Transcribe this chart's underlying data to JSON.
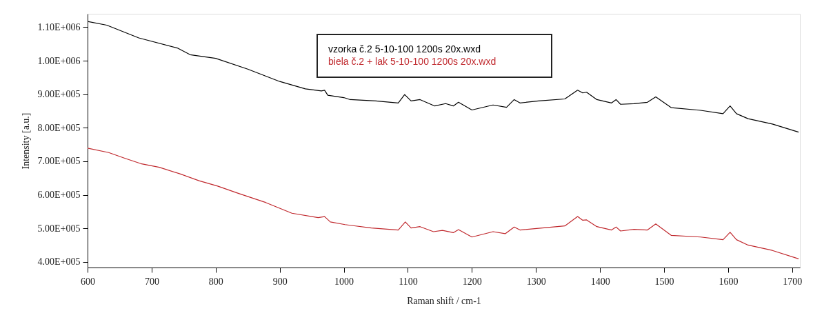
{
  "chart_data": {
    "type": "line",
    "xlabel": "Raman shift / cm-1",
    "ylabel": "Intensity [a.u.]",
    "xlim": [
      600,
      1712
    ],
    "ylim": [
      383000,
      1140000
    ],
    "xticks": [
      600,
      700,
      800,
      900,
      1000,
      1100,
      1200,
      1300,
      1400,
      1500,
      1600,
      1700
    ],
    "yticks": [
      {
        "value": 400000,
        "label": "4.00E+005"
      },
      {
        "value": 500000,
        "label": "5.00E+005"
      },
      {
        "value": 600000,
        "label": "6.00E+005"
      },
      {
        "value": 700000,
        "label": "7.00E+005"
      },
      {
        "value": 800000,
        "label": "8.00E+005"
      },
      {
        "value": 900000,
        "label": "9.00E+005"
      },
      {
        "value": 1000000,
        "label": "1.00E+006"
      },
      {
        "value": 1100000,
        "label": "1.10E+006"
      }
    ],
    "grid": false,
    "legend": "top right",
    "marker": "none",
    "line_style": "solid",
    "series": [
      {
        "name": "vzorka č.2 5-10-100 1200s 20x.wxd",
        "color": "#000000",
        "x": [
          600,
          630,
          680,
          740,
          760,
          800,
          850,
          900,
          940,
          965,
          970,
          975,
          1000,
          1010,
          1050,
          1085,
          1095,
          1105,
          1119,
          1142,
          1159,
          1171,
          1179,
          1200,
          1233,
          1254,
          1266,
          1275,
          1304,
          1345,
          1365,
          1373,
          1379,
          1395,
          1418,
          1425,
          1432,
          1453,
          1474,
          1487,
          1511,
          1557,
          1592,
          1603,
          1613,
          1631,
          1669,
          1710
        ],
        "values": [
          1117000,
          1106000,
          1068000,
          1038000,
          1018000,
          1007000,
          975000,
          938000,
          916000,
          910000,
          912000,
          897000,
          890000,
          884000,
          880000,
          874000,
          899000,
          880000,
          884000,
          865000,
          872000,
          865000,
          876000,
          853000,
          868000,
          861000,
          884000,
          874000,
          880000,
          886000,
          912000,
          904000,
          906000,
          884000,
          874000,
          884000,
          870000,
          872000,
          876000,
          892000,
          860000,
          852000,
          842000,
          865000,
          842000,
          827000,
          811000,
          787000
        ]
      },
      {
        "name": "biela č.2 + lak 5-10-100 1200s 20x.wxd",
        "color": "#c0282d",
        "x": [
          600,
          633,
          658,
          683,
          712,
          745,
          774,
          803,
          836,
          878,
          919,
          960,
          970,
          979,
          1002,
          1043,
          1085,
          1096,
          1105,
          1119,
          1140,
          1154,
          1171,
          1179,
          1200,
          1233,
          1252,
          1266,
          1275,
          1304,
          1345,
          1365,
          1373,
          1379,
          1395,
          1418,
          1425,
          1432,
          1453,
          1474,
          1487,
          1511,
          1557,
          1592,
          1603,
          1613,
          1631,
          1669,
          1710
        ],
        "values": [
          739000,
          726000,
          709000,
          693000,
          682000,
          662000,
          642000,
          626000,
          604000,
          577000,
          545000,
          532000,
          535000,
          519000,
          511000,
          501000,
          495000,
          519000,
          501000,
          505000,
          490000,
          494000,
          487000,
          496000,
          474000,
          490000,
          484000,
          504000,
          495000,
          500000,
          507000,
          535000,
          524000,
          525000,
          505000,
          495000,
          504000,
          492000,
          497000,
          495000,
          513000,
          479000,
          474000,
          466000,
          488000,
          466000,
          450000,
          434000,
          409000
        ]
      }
    ]
  }
}
